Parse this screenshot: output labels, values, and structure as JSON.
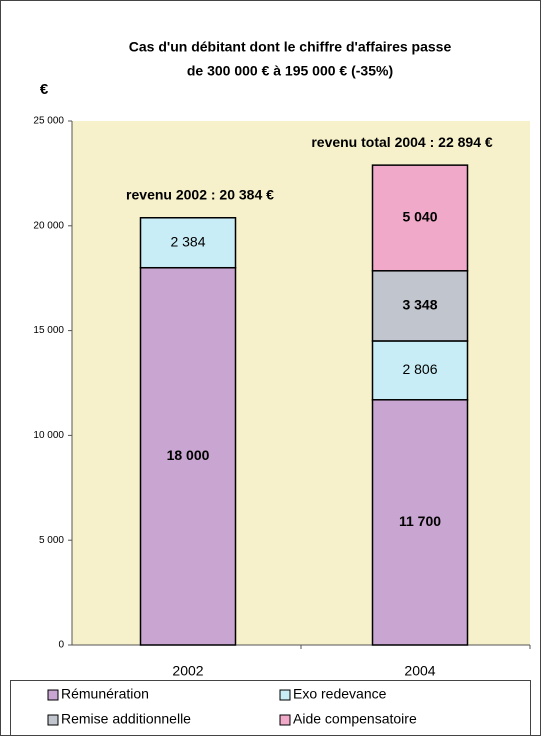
{
  "chart_data": {
    "type": "stacked_bar",
    "title": "Cas d'un débitant dont le chiffre d'affaires passe",
    "subtitle": "de 300 000 € à 195 000 € (-35%)",
    "y_label": "€",
    "annotations": [
      "revenu 2002 : 20 384 €",
      "revenu total 2004 : 22 894 €"
    ],
    "categories": [
      "2002",
      "2004"
    ],
    "series": [
      {
        "name": "Rémunération",
        "color": "#c9a5d1",
        "bold_labels": true,
        "values": [
          18000,
          11700
        ],
        "value_labels": [
          "18 000",
          "11 700"
        ]
      },
      {
        "name": "Exo redevance",
        "color": "#c8edf6",
        "bold_labels": false,
        "values": [
          2384,
          2806
        ],
        "value_labels": [
          "2 384",
          "2 806"
        ]
      },
      {
        "name": "Remise additionnelle",
        "color": "#c1c5cd",
        "bold_labels": true,
        "values": [
          null,
          3348
        ],
        "value_labels": [
          null,
          "3 348"
        ]
      },
      {
        "name": "Aide compensatoire",
        "color": "#f1a9c9",
        "bold_labels": true,
        "values": [
          null,
          5040
        ],
        "value_labels": [
          null,
          "5 040"
        ]
      }
    ],
    "ylim": [
      0,
      25000
    ],
    "yticks": [
      0,
      {
        "value": 5000,
        "label": "5 000"
      },
      {
        "value": 10000,
        "label": "10 000"
      },
      {
        "value": 15000,
        "label": "15 000"
      },
      {
        "value": 20000,
        "label": "20 000"
      },
      {
        "value": 25000,
        "label": "25 000"
      }
    ],
    "plot_background": "#f6f1cb"
  }
}
